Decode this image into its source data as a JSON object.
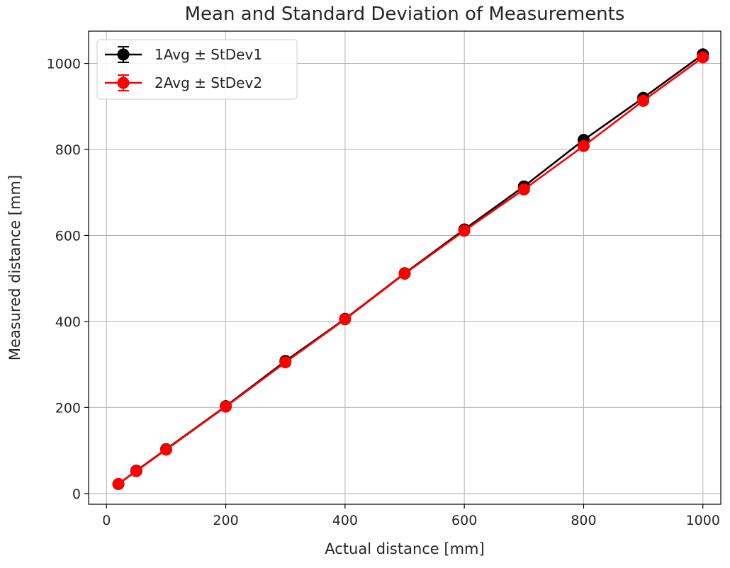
{
  "chart_data": {
    "type": "line",
    "title": "Mean and Standard Deviation of Measurements",
    "xlabel": "Actual distance [mm]",
    "ylabel": "Measured distance [mm]",
    "xlim": [
      -30,
      1030
    ],
    "ylim": [
      -25,
      1075
    ],
    "xticks": [
      0,
      200,
      400,
      600,
      800,
      1000
    ],
    "yticks": [
      0,
      200,
      400,
      600,
      800,
      1000
    ],
    "grid": true,
    "legend": "top-left",
    "x": [
      20,
      50,
      100,
      200,
      300,
      400,
      500,
      600,
      700,
      800,
      900,
      1000
    ],
    "series": [
      {
        "name": "1Avg ± StDev1",
        "color": "#000000",
        "values": [
          22,
          53,
          103,
          203,
          308,
          406,
          512,
          614,
          714,
          822,
          920,
          1021
        ],
        "errors": [
          2,
          2,
          2,
          2,
          3,
          3,
          3,
          4,
          4,
          4,
          5,
          5
        ]
      },
      {
        "name": "2Avg ± StDev2",
        "color": "#ff0000",
        "values": [
          22,
          52,
          102,
          202,
          305,
          405,
          511,
          611,
          707,
          808,
          913,
          1014
        ],
        "errors": [
          2,
          2,
          2,
          2,
          3,
          3,
          3,
          4,
          4,
          4,
          5,
          5
        ]
      }
    ]
  }
}
